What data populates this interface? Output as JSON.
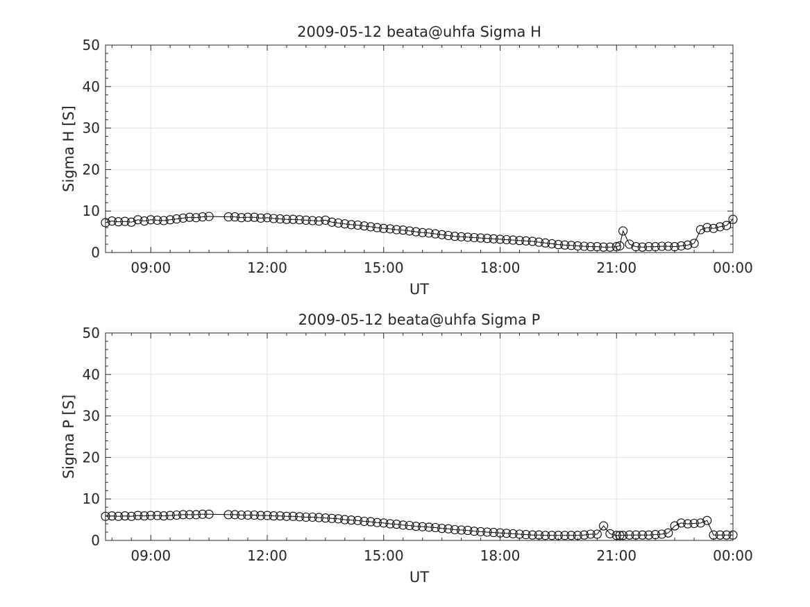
{
  "chart_data": [
    {
      "type": "line",
      "title": "2009-05-12  beata@uhfa Sigma H",
      "xlabel": "UT",
      "ylabel": "Sigma H [S]",
      "xlim": [
        "07:50",
        "00:00"
      ],
      "ylim": [
        0,
        50
      ],
      "x_tick_labels": [
        "09:00",
        "12:00",
        "15:00",
        "18:00",
        "21:00",
        "00:00"
      ],
      "y_tick_labels": [
        "0",
        "10",
        "20",
        "30",
        "40",
        "50"
      ],
      "grid": true,
      "marker": "open-circle",
      "series": [
        {
          "x": [
            "07:50",
            "08:00",
            "08:10",
            "08:20",
            "08:30",
            "08:40",
            "08:50",
            "09:00",
            "09:10",
            "09:20",
            "09:30",
            "09:40",
            "09:50",
            "10:00",
            "10:10",
            "10:20",
            "10:30",
            "11:00",
            "11:10",
            "11:20",
            "11:30",
            "11:40",
            "11:50",
            "12:00",
            "12:10",
            "12:20",
            "12:30",
            "12:40",
            "12:50",
            "13:00",
            "13:10",
            "13:20",
            "13:30",
            "13:40",
            "13:50",
            "14:00",
            "14:10",
            "14:20",
            "14:30",
            "14:40",
            "14:50",
            "15:00",
            "15:10",
            "15:20",
            "15:30",
            "15:40",
            "15:50",
            "16:00",
            "16:10",
            "16:20",
            "16:30",
            "16:40",
            "16:50",
            "17:00",
            "17:10",
            "17:20",
            "17:30",
            "17:40",
            "17:50",
            "18:00",
            "18:10",
            "18:20",
            "18:30",
            "18:40",
            "18:50",
            "19:00",
            "19:10",
            "19:20",
            "19:30",
            "19:40",
            "19:50",
            "20:00",
            "20:10",
            "20:20",
            "20:30",
            "20:40",
            "20:50",
            "21:00",
            "21:05",
            "21:10",
            "21:20",
            "21:30",
            "21:40",
            "21:50",
            "22:00",
            "22:10",
            "22:20",
            "22:30",
            "22:40",
            "22:50",
            "23:00",
            "23:10",
            "23:20",
            "23:30",
            "23:40",
            "23:50",
            "00:00"
          ],
          "y": [
            7.2,
            7.6,
            7.4,
            7.5,
            7.3,
            7.9,
            7.6,
            7.9,
            7.8,
            7.7,
            7.9,
            8.1,
            8.3,
            8.5,
            8.4,
            8.6,
            8.7,
            8.6,
            8.6,
            8.4,
            8.5,
            8.5,
            8.3,
            8.4,
            8.2,
            8.1,
            8.0,
            8.0,
            7.9,
            7.8,
            7.7,
            7.6,
            7.8,
            7.3,
            7.1,
            6.9,
            6.7,
            6.6,
            6.4,
            6.2,
            6.0,
            5.8,
            5.7,
            5.5,
            5.4,
            5.2,
            5.0,
            4.8,
            4.7,
            4.5,
            4.3,
            4.1,
            3.9,
            3.8,
            3.7,
            3.6,
            3.5,
            3.4,
            3.3,
            3.2,
            3.1,
            3.0,
            2.9,
            2.8,
            2.7,
            2.5,
            2.3,
            2.1,
            1.9,
            1.8,
            1.7,
            1.6,
            1.5,
            1.4,
            1.4,
            1.3,
            1.3,
            1.4,
            1.6,
            5.2,
            2.0,
            1.4,
            1.3,
            1.4,
            1.4,
            1.5,
            1.5,
            1.4,
            1.6,
            1.8,
            2.2,
            5.5,
            6.0,
            5.8,
            6.2,
            6.5,
            8.0
          ]
        }
      ]
    },
    {
      "type": "line",
      "title": "2009-05-12  beata@uhfa Sigma P",
      "xlabel": "UT",
      "ylabel": "Sigma P [S]",
      "xlim": [
        "07:50",
        "00:00"
      ],
      "ylim": [
        0,
        50
      ],
      "x_tick_labels": [
        "09:00",
        "12:00",
        "15:00",
        "18:00",
        "21:00",
        "00:00"
      ],
      "y_tick_labels": [
        "0",
        "10",
        "20",
        "30",
        "40",
        "50"
      ],
      "grid": true,
      "marker": "open-circle",
      "series": [
        {
          "x": [
            "07:50",
            "08:00",
            "08:10",
            "08:20",
            "08:30",
            "08:40",
            "08:50",
            "09:00",
            "09:10",
            "09:20",
            "09:30",
            "09:40",
            "09:50",
            "10:00",
            "10:10",
            "10:20",
            "10:30",
            "11:00",
            "11:10",
            "11:20",
            "11:30",
            "11:40",
            "11:50",
            "12:00",
            "12:10",
            "12:20",
            "12:30",
            "12:40",
            "12:50",
            "13:00",
            "13:10",
            "13:20",
            "13:30",
            "13:40",
            "13:50",
            "14:00",
            "14:10",
            "14:20",
            "14:30",
            "14:40",
            "14:50",
            "15:00",
            "15:10",
            "15:20",
            "15:30",
            "15:40",
            "15:50",
            "16:00",
            "16:10",
            "16:20",
            "16:30",
            "16:40",
            "16:50",
            "17:00",
            "17:10",
            "17:20",
            "17:30",
            "17:40",
            "17:50",
            "18:00",
            "18:10",
            "18:20",
            "18:30",
            "18:40",
            "18:50",
            "19:00",
            "19:10",
            "19:20",
            "19:30",
            "19:40",
            "19:50",
            "20:00",
            "20:10",
            "20:20",
            "20:30",
            "20:40",
            "20:50",
            "21:00",
            "21:05",
            "21:10",
            "21:20",
            "21:30",
            "21:40",
            "21:50",
            "22:00",
            "22:10",
            "22:20",
            "22:30",
            "22:40",
            "22:50",
            "23:00",
            "23:10",
            "23:20",
            "23:30",
            "23:40",
            "23:50",
            "00:00"
          ],
          "y": [
            5.8,
            5.9,
            5.8,
            5.9,
            5.8,
            6.0,
            5.9,
            6.0,
            6.0,
            5.9,
            6.0,
            6.1,
            6.2,
            6.2,
            6.2,
            6.3,
            6.3,
            6.2,
            6.2,
            6.1,
            6.1,
            6.1,
            6.0,
            6.0,
            5.9,
            5.9,
            5.8,
            5.8,
            5.7,
            5.6,
            5.6,
            5.5,
            5.4,
            5.3,
            5.2,
            5.0,
            4.9,
            4.8,
            4.6,
            4.5,
            4.3,
            4.2,
            4.0,
            3.9,
            3.7,
            3.6,
            3.4,
            3.3,
            3.2,
            3.1,
            2.9,
            2.8,
            2.6,
            2.5,
            2.4,
            2.2,
            2.1,
            2.0,
            1.9,
            1.8,
            1.7,
            1.6,
            1.5,
            1.4,
            1.3,
            1.3,
            1.2,
            1.2,
            1.2,
            1.2,
            1.2,
            1.2,
            1.3,
            1.5,
            1.5,
            3.5,
            1.6,
            1.2,
            1.2,
            1.2,
            1.3,
            1.3,
            1.3,
            1.3,
            1.4,
            1.5,
            1.8,
            3.5,
            4.2,
            4.0,
            4.1,
            4.2,
            4.8,
            1.3,
            1.3,
            1.3,
            1.3
          ]
        }
      ]
    }
  ]
}
